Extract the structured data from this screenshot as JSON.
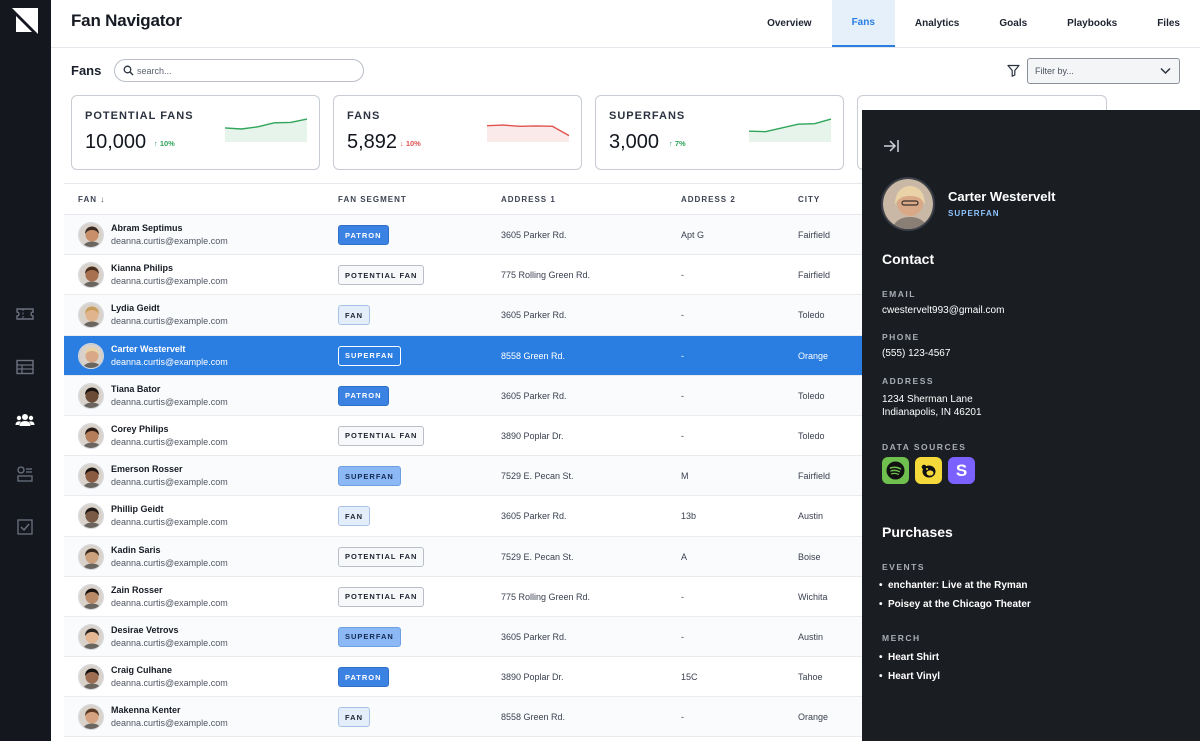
{
  "app": {
    "title": "Fan Navigator"
  },
  "nav": {
    "tabs": [
      "Overview",
      "Fans",
      "Analytics",
      "Goals",
      "Playbooks",
      "Files"
    ],
    "active": "Fans"
  },
  "toolbar": {
    "label": "Fans",
    "search_placeholder": "search...",
    "filter_placeholder": "Filter by..."
  },
  "stats": [
    {
      "label": "POTENTIAL FANS",
      "value": "10,000",
      "delta": "10%",
      "direction": "up",
      "trend": [
        0.55,
        0.5,
        0.6,
        0.78,
        0.8,
        0.95
      ]
    },
    {
      "label": "FANS",
      "value": "5,892",
      "delta": "10%",
      "direction": "down",
      "trend": [
        0.65,
        0.68,
        0.62,
        0.64,
        0.62,
        0.2
      ]
    },
    {
      "label": "SUPERFANS",
      "value": "3,000",
      "delta": "7%",
      "direction": "up",
      "trend": [
        0.4,
        0.38,
        0.55,
        0.72,
        0.74,
        0.95
      ]
    }
  ],
  "table": {
    "columns": [
      "FAN",
      "FAN SEGMENT",
      "ADDRESS 1",
      "ADDRESS 2",
      "CITY"
    ],
    "sort_indicator": "↓",
    "rows": [
      {
        "name": "Abram Septimus",
        "email": "deanna.curtis@example.com",
        "segment": "PATRON",
        "segment_type": "patron",
        "address1": "3605 Parker Rd.",
        "address2": "Apt G",
        "city": "Fairfield"
      },
      {
        "name": "Kianna Philips",
        "email": "deanna.curtis@example.com",
        "segment": "POTENTIAL FAN",
        "segment_type": "potential",
        "address1": "775 Rolling Green Rd.",
        "address2": "-",
        "city": "Fairfield"
      },
      {
        "name": "Lydia Geidt",
        "email": "deanna.curtis@example.com",
        "segment": "FAN",
        "segment_type": "fan",
        "address1": "3605 Parker Rd.",
        "address2": "-",
        "city": "Toledo"
      },
      {
        "name": "Carter Westervelt",
        "email": "deanna.curtis@example.com",
        "segment": "SUPERFAN",
        "segment_type": "superfan",
        "address1": "8558 Green Rd.",
        "address2": "-",
        "city": "Orange",
        "selected": true
      },
      {
        "name": "Tiana Bator",
        "email": "deanna.curtis@example.com",
        "segment": "PATRON",
        "segment_type": "patron",
        "address1": "3605 Parker Rd.",
        "address2": "-",
        "city": "Toledo"
      },
      {
        "name": "Corey Philips",
        "email": "deanna.curtis@example.com",
        "segment": "POTENTIAL FAN",
        "segment_type": "potential",
        "address1": "3890 Poplar Dr.",
        "address2": "-",
        "city": "Toledo"
      },
      {
        "name": "Emerson Rosser",
        "email": "deanna.curtis@example.com",
        "segment": "SUPERFAN",
        "segment_type": "superfan",
        "address1": "7529 E. Pecan St.",
        "address2": "M",
        "city": "Fairfield"
      },
      {
        "name": "Phillip Geidt",
        "email": "deanna.curtis@example.com",
        "segment": "FAN",
        "segment_type": "fan",
        "address1": "3605 Parker Rd.",
        "address2": "13b",
        "city": "Austin"
      },
      {
        "name": "Kadin Saris",
        "email": "deanna.curtis@example.com",
        "segment": "POTENTIAL FAN",
        "segment_type": "potential",
        "address1": "7529 E. Pecan St.",
        "address2": "A",
        "city": "Boise"
      },
      {
        "name": "Zain Rosser",
        "email": "deanna.curtis@example.com",
        "segment": "POTENTIAL FAN",
        "segment_type": "potential",
        "address1": "775 Rolling Green Rd.",
        "address2": "-",
        "city": "Wichita"
      },
      {
        "name": "Desirae Vetrovs",
        "email": "deanna.curtis@example.com",
        "segment": "SUPERFAN",
        "segment_type": "superfan",
        "address1": "3605 Parker Rd.",
        "address2": "-",
        "city": "Austin"
      },
      {
        "name": "Craig Culhane",
        "email": "deanna.curtis@example.com",
        "segment": "PATRON",
        "segment_type": "patron",
        "address1": "3890 Poplar Dr.",
        "address2": "15C",
        "city": "Tahoe"
      },
      {
        "name": "Makenna Kenter",
        "email": "deanna.curtis@example.com",
        "segment": "FAN",
        "segment_type": "fan",
        "address1": "8558 Green Rd.",
        "address2": "-",
        "city": "Orange"
      }
    ]
  },
  "detail": {
    "name": "Carter Westervelt",
    "segment": "SUPERFAN",
    "contact_title": "Contact",
    "email_label": "EMAIL",
    "email": "cwestervelt993@gmail.com",
    "phone_label": "PHONE",
    "phone": "(555) 123-4567",
    "address_label": "ADDRESS",
    "address_line1": "1234 Sherman Lane",
    "address_line2": "Indianapolis, IN 46201",
    "sources_label": "DATA SOURCES",
    "sources": [
      "spotify-icon",
      "mailchimp-icon",
      "s-app-icon"
    ],
    "purchases_title": "Purchases",
    "events_label": "EVENTS",
    "events": [
      "enchanter: Live at the Ryman",
      "Poisey at the Chicago Theater"
    ],
    "merch_label": "MERCH",
    "merch": [
      "Heart Shirt",
      "Heart Vinyl"
    ]
  },
  "colors": {
    "accent": "#2a7de1",
    "rail": "#14171d",
    "panel": "#1a1d22",
    "up": "#2fa55a",
    "down": "#e0534f"
  }
}
